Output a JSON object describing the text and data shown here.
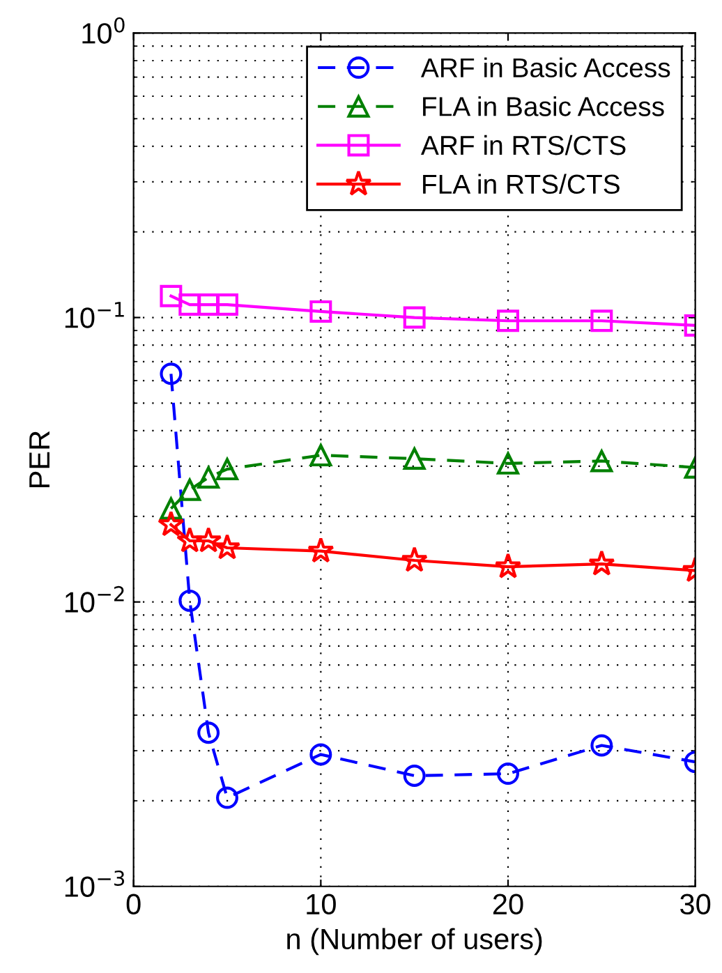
{
  "chart_data": {
    "type": "line",
    "xlabel": "n (Number of users)",
    "ylabel": "PER",
    "x": [
      2,
      3,
      4,
      5,
      10,
      15,
      20,
      25,
      30
    ],
    "series": [
      {
        "name": "ARF in Basic Access",
        "color": "#0000ff",
        "marker": "circle",
        "line_style": "dashed",
        "values": [
          0.0634,
          0.0101,
          0.00347,
          0.00205,
          0.00291,
          0.00245,
          0.00249,
          0.00313,
          0.00274
        ]
      },
      {
        "name": "FLA in Basic Access",
        "color": "#008000",
        "marker": "triangle",
        "line_style": "dashed",
        "values": [
          0.0213,
          0.0248,
          0.0274,
          0.0293,
          0.0328,
          0.0319,
          0.0307,
          0.0313,
          0.0297
        ]
      },
      {
        "name": "ARF in RTS/CTS",
        "color": "#ff00ff",
        "marker": "square",
        "line_style": "solid",
        "values": [
          0.119,
          0.111,
          0.111,
          0.111,
          0.105,
          0.1,
          0.0974,
          0.0974,
          0.0938
        ]
      },
      {
        "name": "FLA in RTS/CTS",
        "color": "#ff0000",
        "marker": "star",
        "line_style": "solid",
        "values": [
          0.0187,
          0.0164,
          0.0164,
          0.0155,
          0.0151,
          0.014,
          0.0133,
          0.0136,
          0.0129
        ]
      }
    ],
    "log": "y",
    "xlim": [
      0,
      30
    ],
    "xticks": [
      0,
      10,
      20,
      30
    ],
    "ylim": [
      0.001,
      1
    ],
    "yticks": [
      {
        "value": 0.001,
        "label": "10$^{−3}$"
      },
      {
        "value": 0.01,
        "label": "10$^{−2}$"
      },
      {
        "value": 0.1,
        "label": "10$^{−1}$"
      },
      {
        "value": 1,
        "label": "10$^{0}$"
      }
    ],
    "grid": true,
    "legend": "top right"
  }
}
